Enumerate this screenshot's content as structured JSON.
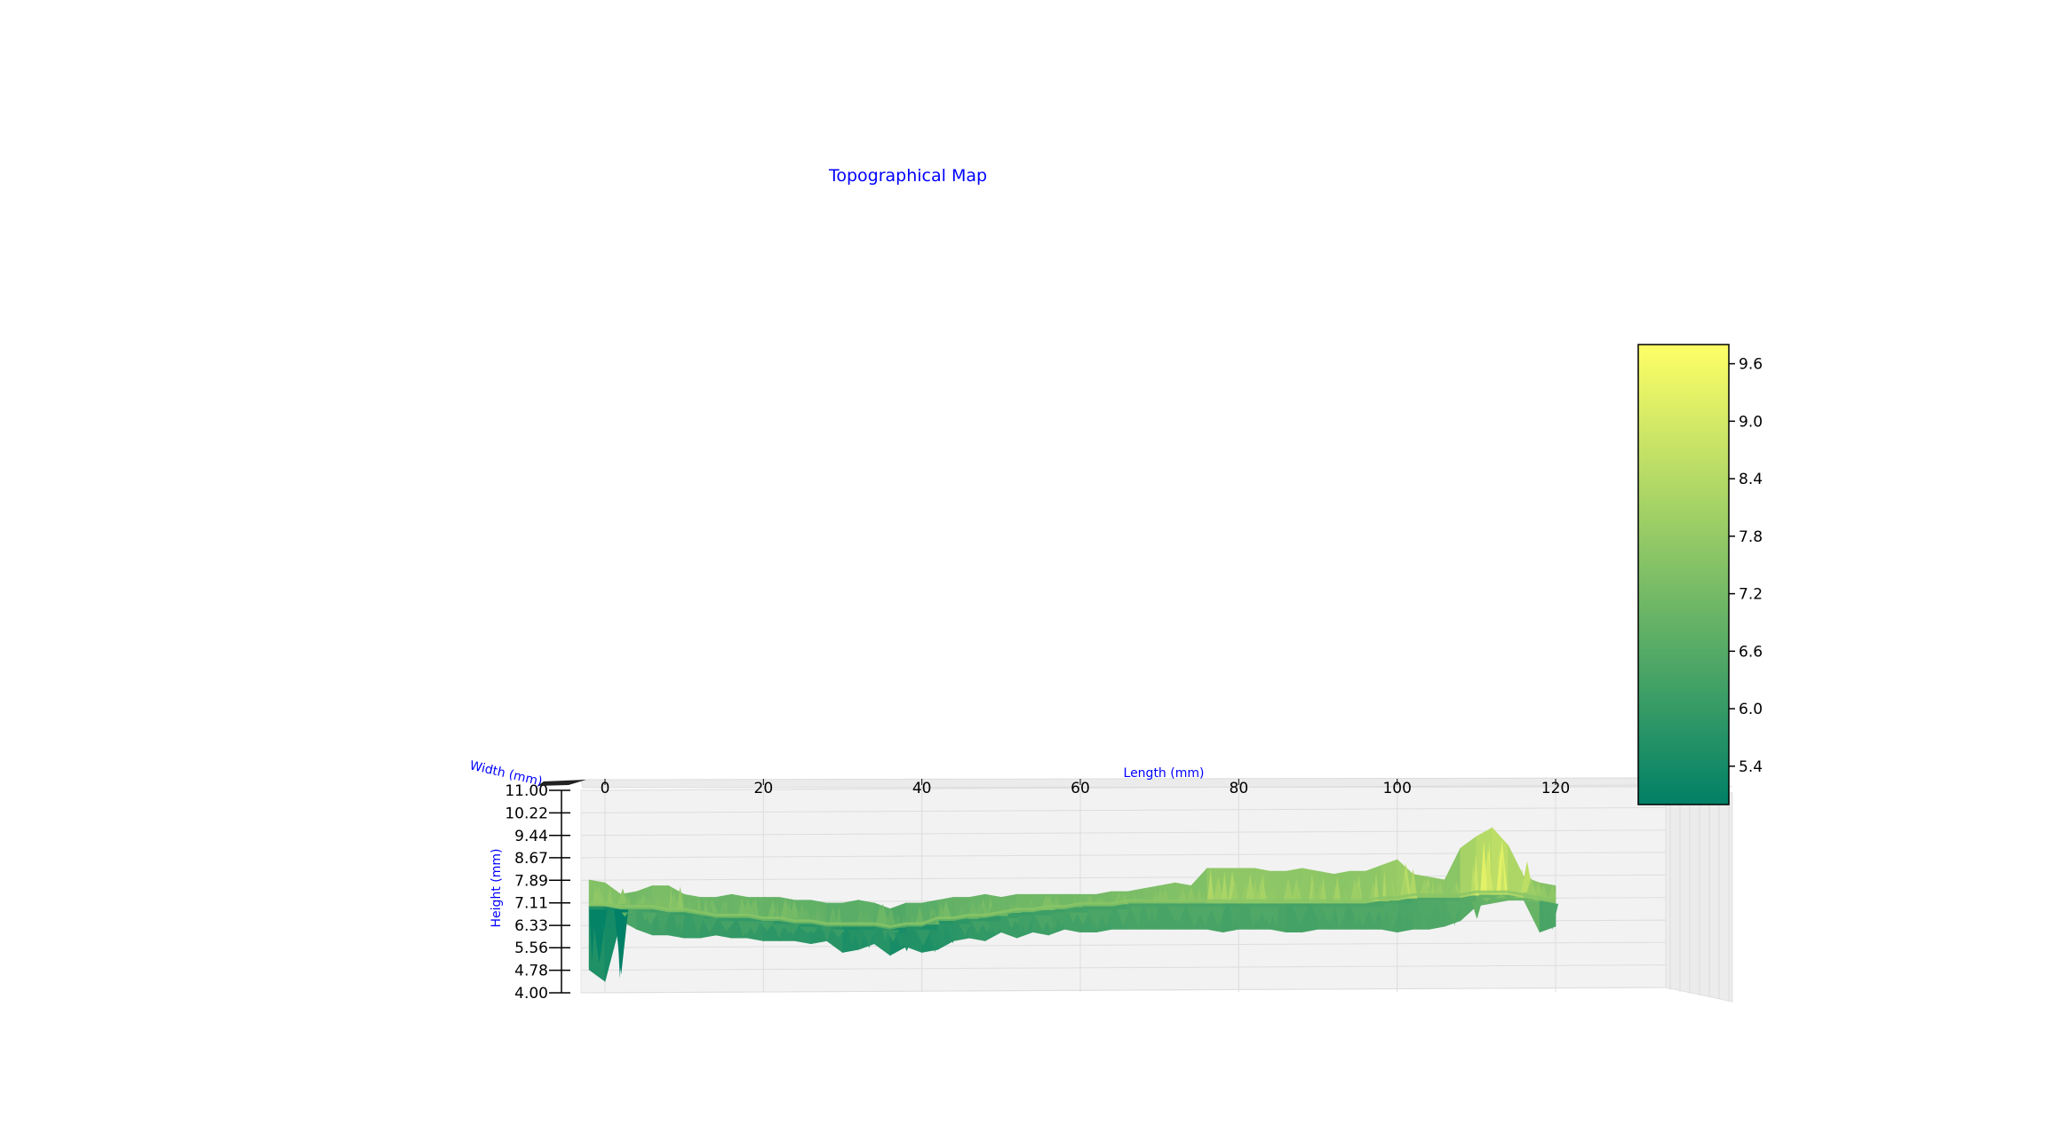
{
  "chart_data": {
    "type": "surface",
    "title": "Topographical Map",
    "xlabel": "Length (mm)",
    "ylabel": "Width (mm)",
    "zlabel": "Height (mm)",
    "x_ticks": [
      "0",
      "20",
      "40",
      "60",
      "80",
      "100",
      "120"
    ],
    "z_ticks": [
      "4.00",
      "4.78",
      "5.56",
      "6.33",
      "7.11",
      "7.89",
      "8.67",
      "9.44",
      "10.22",
      "11.00"
    ],
    "xlim": [
      0,
      120
    ],
    "zlim": [
      4.0,
      11.0
    ],
    "colorbar": {
      "ticks": [
        "5.4",
        "6.0",
        "6.6",
        "7.2",
        "7.8",
        "8.4",
        "9.0",
        "9.6"
      ],
      "range": [
        5.0,
        9.8
      ],
      "colormap": "summer",
      "color_low": "#008066",
      "color_high": "#ffff66"
    },
    "height_profile": {
      "x": [
        -2,
        0,
        2,
        4,
        6,
        8,
        10,
        12,
        14,
        16,
        18,
        20,
        22,
        24,
        26,
        28,
        30,
        32,
        34,
        36,
        38,
        40,
        42,
        44,
        46,
        48,
        50,
        52,
        54,
        56,
        58,
        60,
        62,
        64,
        66,
        68,
        70,
        72,
        74,
        76,
        78,
        80,
        82,
        84,
        86,
        88,
        90,
        92,
        94,
        96,
        98,
        100,
        102,
        104,
        106,
        108,
        110,
        112,
        114,
        116,
        118,
        120
      ],
      "max": [
        7.9,
        7.8,
        7.4,
        7.5,
        7.7,
        7.7,
        7.4,
        7.3,
        7.3,
        7.4,
        7.3,
        7.3,
        7.3,
        7.2,
        7.2,
        7.1,
        7.1,
        7.2,
        7.1,
        6.9,
        7.1,
        7.1,
        7.2,
        7.3,
        7.3,
        7.4,
        7.3,
        7.4,
        7.4,
        7.4,
        7.4,
        7.4,
        7.4,
        7.5,
        7.5,
        7.6,
        7.7,
        7.8,
        7.7,
        8.3,
        8.3,
        8.3,
        8.3,
        8.2,
        8.2,
        8.3,
        8.2,
        8.1,
        8.2,
        8.2,
        8.4,
        8.6,
        8.1,
        8.0,
        7.9,
        9.0,
        9.4,
        9.7,
        9.1,
        8.0,
        7.8,
        7.7
      ],
      "mid": [
        7.0,
        7.0,
        6.9,
        6.9,
        6.9,
        6.8,
        6.8,
        6.7,
        6.6,
        6.6,
        6.6,
        6.5,
        6.5,
        6.4,
        6.4,
        6.3,
        6.3,
        6.3,
        6.3,
        6.2,
        6.3,
        6.3,
        6.5,
        6.5,
        6.6,
        6.6,
        6.7,
        6.8,
        6.8,
        6.9,
        6.9,
        7.0,
        7.0,
        7.0,
        7.1,
        7.1,
        7.1,
        7.1,
        7.1,
        7.1,
        7.1,
        7.1,
        7.1,
        7.1,
        7.1,
        7.1,
        7.1,
        7.1,
        7.1,
        7.1,
        7.2,
        7.2,
        7.3,
        7.3,
        7.3,
        7.3,
        7.4,
        7.4,
        7.4,
        7.3,
        7.2,
        7.1
      ],
      "min": [
        4.8,
        4.4,
        6.5,
        6.2,
        6.0,
        6.0,
        5.9,
        5.9,
        6.0,
        5.9,
        5.9,
        5.8,
        5.8,
        5.8,
        5.7,
        5.8,
        5.4,
        5.5,
        5.7,
        5.3,
        5.6,
        5.4,
        5.5,
        5.8,
        5.9,
        5.8,
        6.1,
        5.9,
        6.1,
        6.0,
        6.2,
        6.1,
        6.1,
        6.2,
        6.2,
        6.2,
        6.2,
        6.2,
        6.2,
        6.2,
        6.1,
        6.2,
        6.2,
        6.2,
        6.1,
        6.1,
        6.2,
        6.2,
        6.2,
        6.2,
        6.2,
        6.1,
        6.2,
        6.2,
        6.3,
        6.5,
        7.0,
        7.1,
        7.2,
        7.2,
        6.1,
        6.3
      ]
    }
  }
}
